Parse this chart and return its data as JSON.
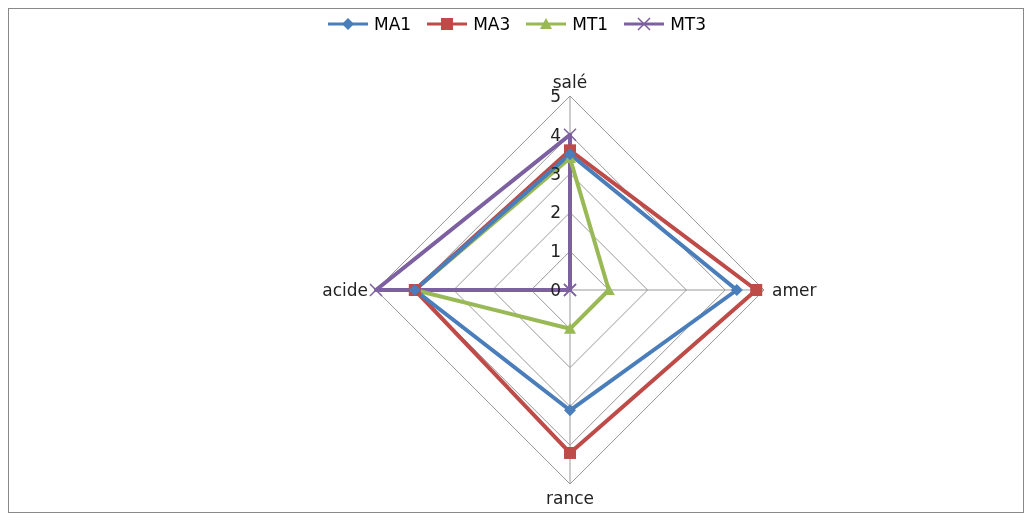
{
  "chart_data": {
    "type": "radar",
    "categories": [
      "salé",
      "amer",
      "rance",
      "acide"
    ],
    "ylim": [
      0,
      5
    ],
    "yticks": [
      0,
      1,
      2,
      3,
      4,
      5
    ],
    "grid": true,
    "legend": "top",
    "series": [
      {
        "name": "MA1",
        "color": "#4a7ebb",
        "marker": "diamond",
        "values": [
          3.5,
          4.3,
          3.1,
          4
        ]
      },
      {
        "name": "MA3",
        "color": "#be4b48",
        "marker": "square",
        "values": [
          3.6,
          4.8,
          4.2,
          4
        ]
      },
      {
        "name": "MT1",
        "color": "#98b954",
        "marker": "triangle",
        "values": [
          3.4,
          1,
          1,
          4
        ]
      },
      {
        "name": "MT3",
        "color": "#7d60a0",
        "marker": "cross",
        "values": [
          4,
          0,
          0,
          5
        ]
      }
    ]
  }
}
